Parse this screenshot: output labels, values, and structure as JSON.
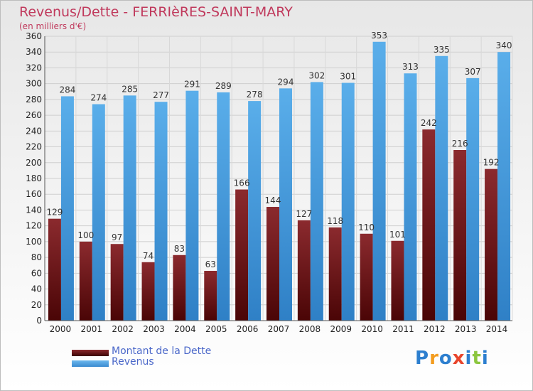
{
  "header": {
    "title": "Revenus/Dette - FERRIèRES-SAINT-MARY",
    "subtitle": "(en milliers d'€)"
  },
  "chart_data": {
    "type": "bar",
    "categories": [
      "2000",
      "2001",
      "2002",
      "2003",
      "2004",
      "2005",
      "2006",
      "2007",
      "2008",
      "2009",
      "2010",
      "2011",
      "2012",
      "2013",
      "2014"
    ],
    "series": [
      {
        "name": "Montant de la Dette",
        "color": "#7a1f23",
        "values": [
          129,
          100,
          97,
          74,
          83,
          63,
          166,
          144,
          127,
          118,
          110,
          101,
          242,
          216,
          192
        ]
      },
      {
        "name": "Revenus",
        "color": "#4ea6e6",
        "values": [
          284,
          274,
          285,
          277,
          291,
          289,
          278,
          294,
          302,
          301,
          353,
          313,
          335,
          307,
          340
        ]
      }
    ],
    "ylim": [
      0,
      360
    ],
    "yticks": [
      0,
      20,
      40,
      60,
      80,
      100,
      120,
      140,
      160,
      180,
      200,
      220,
      240,
      260,
      280,
      300,
      320,
      340,
      360
    ],
    "grid": true,
    "legend_position": "bottom-left"
  },
  "legend": {
    "items": [
      {
        "label": "Montant de la Dette",
        "color": "#5c0f12"
      },
      {
        "label": "Revenus",
        "color": "#4ea6e6"
      }
    ]
  },
  "logo": {
    "letters": [
      "P",
      "r",
      "o",
      "x",
      "i",
      "t",
      "i"
    ],
    "colors": [
      "#2d7fcf",
      "#f39c1f",
      "#2d7fcf",
      "#e8452c",
      "#2d7fcf",
      "#8cc63f",
      "#2d7fcf"
    ]
  }
}
